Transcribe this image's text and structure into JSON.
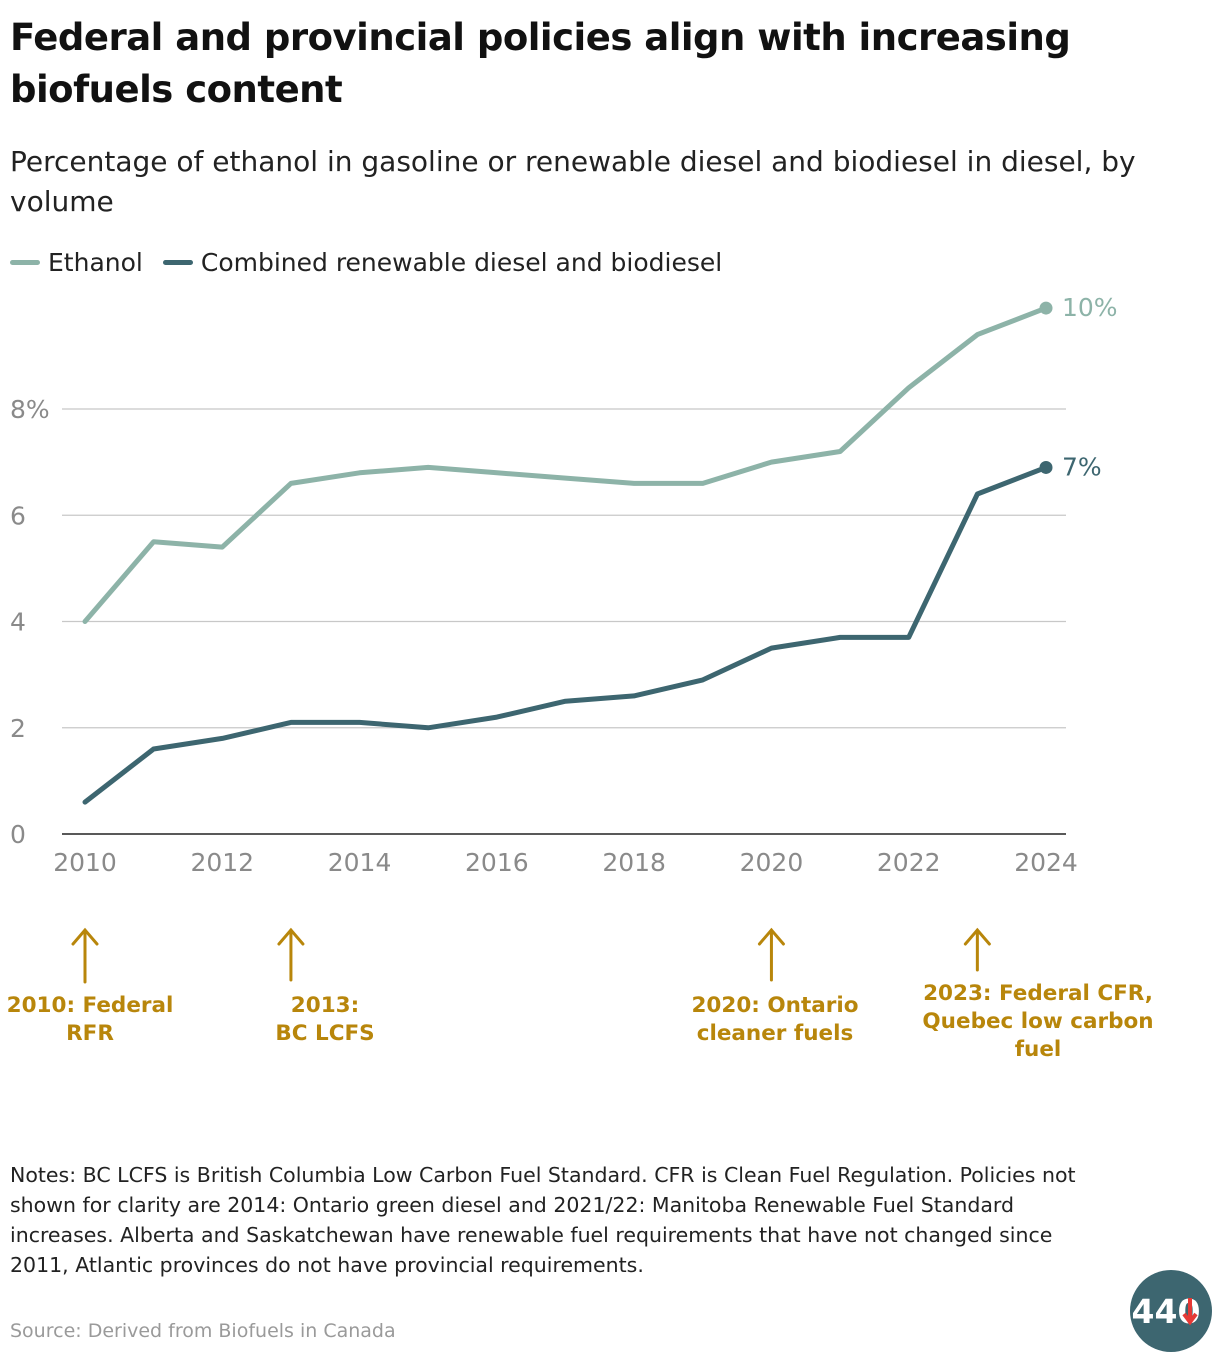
{
  "chart_data": {
    "type": "line",
    "title": "Federal and provincial policies align with increasing biofuels content",
    "subtitle": "Percentage of ethanol in gasoline or renewable diesel and biodiesel in diesel, by volume",
    "xlabel": "",
    "ylabel": "",
    "x": [
      2010,
      2011,
      2012,
      2013,
      2014,
      2015,
      2016,
      2017,
      2018,
      2019,
      2020,
      2021,
      2022,
      2023,
      2024
    ],
    "xticks": [
      "2010",
      "2012",
      "2014",
      "2016",
      "2018",
      "2020",
      "2022",
      "2024"
    ],
    "xlim": [
      2010,
      2024
    ],
    "ylim": [
      0,
      10
    ],
    "yticks": [
      "0",
      "2",
      "4",
      "6",
      "8%"
    ],
    "grid": true,
    "legend_position": "top-left",
    "series": [
      {
        "name": "Ethanol",
        "color": "#8db3a8",
        "values": [
          4.0,
          5.5,
          5.4,
          6.6,
          6.8,
          6.9,
          6.8,
          6.7,
          6.6,
          6.6,
          7.0,
          7.2,
          8.4,
          9.4,
          9.9
        ],
        "end_label": "10%"
      },
      {
        "name": "Combined renewable diesel and biodiesel",
        "color": "#3d6670",
        "values": [
          0.6,
          1.6,
          1.8,
          2.1,
          2.1,
          2.0,
          2.2,
          2.5,
          2.6,
          2.9,
          3.5,
          3.7,
          3.7,
          6.4,
          6.9
        ],
        "end_label": "7%"
      }
    ],
    "annotations": [
      {
        "year": 2010,
        "lines": [
          "2010: Federal",
          "RFR"
        ]
      },
      {
        "year": 2013,
        "lines": [
          "2013:",
          "BC LCFS"
        ]
      },
      {
        "year": 2020,
        "lines": [
          "2020: Ontario",
          "cleaner fuels"
        ]
      },
      {
        "year": 2023,
        "lines": [
          "2023: Federal CFR,",
          "Quebec low carbon",
          "fuel"
        ]
      }
    ],
    "annotation_color": "#b8860b"
  },
  "notes": "Notes: BC LCFS is British Columbia Low Carbon Fuel Standard. CFR is Clean Fuel Regulation. Policies not shown for clarity are 2014: Ontario green diesel and 2021/22: Manitoba Renewable Fuel Standard increases. Alberta and Saskatchewan have renewable fuel requirements that have not changed since 2011, Atlantic provinces do not have provincial requirements.",
  "source": "Source: Derived from Biofuels in Canada",
  "logo": {
    "text": "440",
    "color": "#3d6670",
    "accent": "#e53935"
  }
}
